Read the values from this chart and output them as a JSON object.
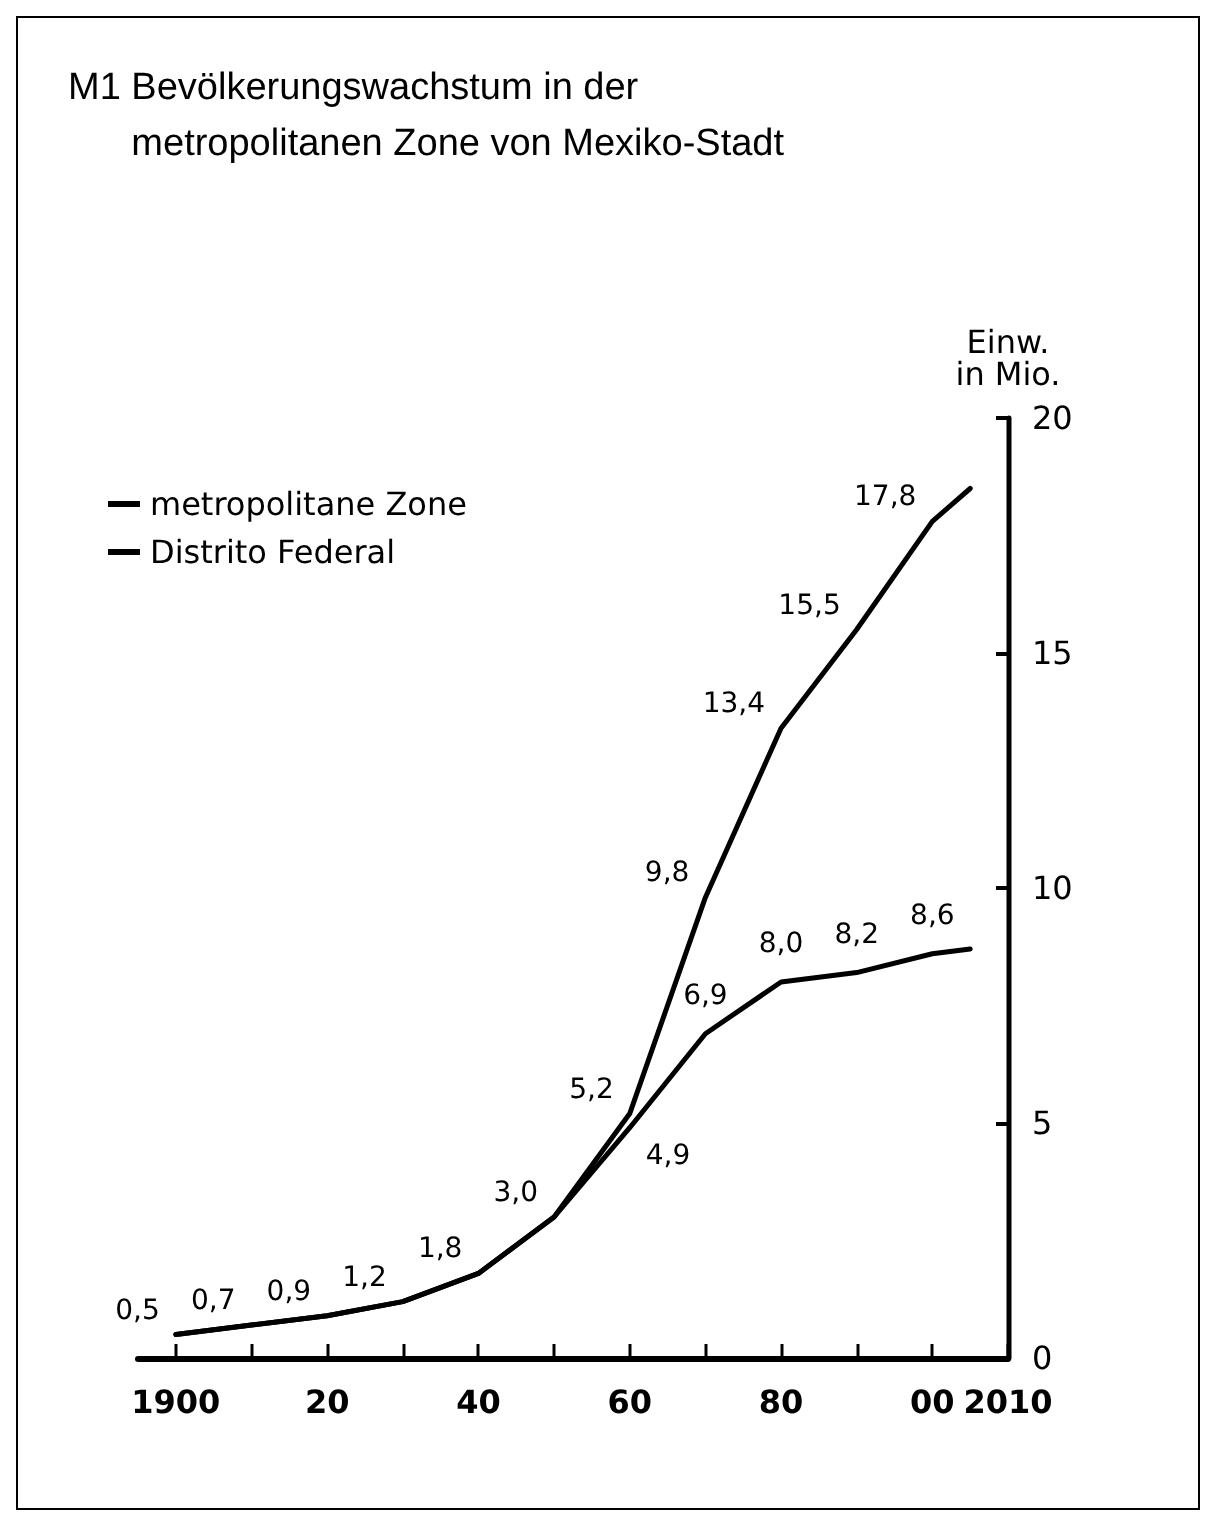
{
  "chart_data": {
    "type": "line",
    "title": "M1 Bevölkerungswachstum in der\n      metropolitanen Zone von Mexiko-Stadt",
    "ylabel": "Einw.\nin Mio.",
    "x": [
      1900,
      1910,
      1920,
      1930,
      1940,
      1950,
      1960,
      1970,
      1980,
      1990,
      2000,
      2005
    ],
    "series": [
      {
        "name": "metropolitane Zone",
        "color": "#000000",
        "values": [
          0.5,
          0.7,
          0.9,
          1.2,
          1.8,
          3.0,
          5.2,
          9.8,
          13.4,
          15.5,
          17.8,
          18.5
        ],
        "value_labels": [
          "0,5",
          "0,7",
          "0,9",
          "1,2",
          "1,8",
          "3,0",
          "5,2",
          "9,8",
          "13,4",
          "15,5",
          "17,8",
          null
        ]
      },
      {
        "name": "Distrito Federal",
        "color": "#000000",
        "values": [
          0.5,
          0.7,
          0.9,
          1.2,
          1.8,
          3.0,
          4.9,
          6.9,
          8.0,
          8.2,
          8.6,
          8.7
        ],
        "value_labels": [
          null,
          null,
          null,
          null,
          null,
          null,
          "4,9",
          "6,9",
          "8,0",
          "8,2",
          "8,6",
          null
        ]
      }
    ],
    "xlim": [
      1895,
      2010
    ],
    "xticks": [
      {
        "value": 1900,
        "label": "1900"
      },
      {
        "value": 1910,
        "label": null
      },
      {
        "value": 1920,
        "label": "20"
      },
      {
        "value": 1930,
        "label": null
      },
      {
        "value": 1940,
        "label": "40"
      },
      {
        "value": 1950,
        "label": null
      },
      {
        "value": 1960,
        "label": "60"
      },
      {
        "value": 1970,
        "label": null
      },
      {
        "value": 1980,
        "label": "80"
      },
      {
        "value": 1990,
        "label": null
      },
      {
        "value": 2000,
        "label": "00"
      },
      {
        "value": 2010,
        "label": "2010"
      }
    ],
    "ylim": [
      0,
      20
    ],
    "yticks": [
      0,
      5,
      10,
      15,
      20
    ],
    "grid": false,
    "legend": "top left",
    "marker": "none",
    "line_style": "solid"
  }
}
